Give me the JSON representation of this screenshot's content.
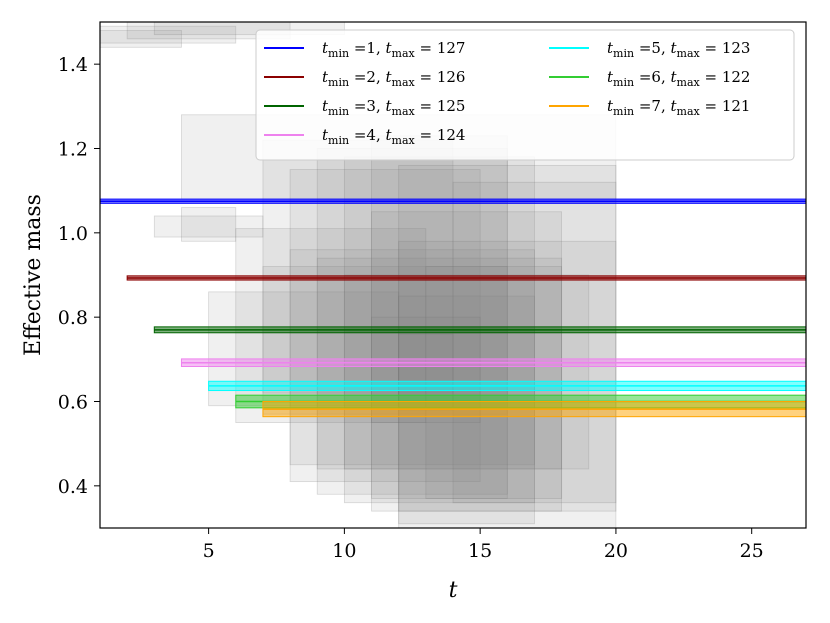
{
  "chart_data": {
    "type": "line",
    "xlabel": "t",
    "ylabel": "Effective mass",
    "xlim": [
      1,
      27
    ],
    "ylim": [
      0.3,
      1.5
    ],
    "xticks": [
      5,
      10,
      15,
      20,
      25
    ],
    "yticks": [
      0.4,
      0.6,
      0.8,
      1.0,
      1.2,
      1.4
    ],
    "legend_position": "top-right",
    "series": [
      {
        "name": "t_min = 1, t_max = 127",
        "legend": {
          "a": "1",
          "b": "127"
        },
        "color": "#0000ff",
        "x_start": 1,
        "center": 1.075,
        "half_width": 0.005
      },
      {
        "name": "t_min = 2, t_max = 126",
        "legend": {
          "a": "2",
          "b": "126"
        },
        "color": "#8b0000",
        "x_start": 2,
        "center": 0.893,
        "half_width": 0.005
      },
      {
        "name": "t_min = 3, t_max = 125",
        "legend": {
          "a": "3",
          "b": "125"
        },
        "color": "#006400",
        "x_start": 3,
        "center": 0.77,
        "half_width": 0.007
      },
      {
        "name": "t_min = 4, t_max = 124",
        "legend": {
          "a": "4",
          "b": "124"
        },
        "color": "#ee82ee",
        "x_start": 4,
        "center": 0.692,
        "half_width": 0.009
      },
      {
        "name": "t_min = 5, t_max = 123",
        "legend": {
          "a": "5",
          "b": "123"
        },
        "color": "#00ffff",
        "x_start": 5,
        "center": 0.637,
        "half_width": 0.011
      },
      {
        "name": "t_min = 6, t_max = 122",
        "legend": {
          "a": "6",
          "b": "122"
        },
        "color": "#32cd32",
        "x_start": 6,
        "center": 0.6,
        "half_width": 0.015
      },
      {
        "name": "t_min = 7, t_max = 121",
        "legend": {
          "a": "7",
          "b": "121"
        },
        "color": "#ffa500",
        "x_start": 7,
        "center": 0.582,
        "half_width": 0.018
      }
    ],
    "background_boxes": [
      {
        "x0": 1,
        "x1": 4,
        "y0": 1.44,
        "y1": 1.48
      },
      {
        "x0": 1,
        "x1": 6,
        "y0": 1.45,
        "y1": 1.49
      },
      {
        "x0": 2,
        "x1": 8,
        "y0": 1.46,
        "y1": 1.5
      },
      {
        "x0": 3,
        "x1": 10,
        "y0": 1.47,
        "y1": 1.5
      },
      {
        "x0": 4,
        "x1": 6,
        "y0": 0.98,
        "y1": 1.06
      },
      {
        "x0": 3,
        "x1": 7,
        "y0": 0.99,
        "y1": 1.04
      },
      {
        "x0": 4,
        "x1": 20,
        "y0": 1.08,
        "y1": 1.28
      },
      {
        "x0": 5,
        "x1": 12,
        "y0": 0.59,
        "y1": 0.86
      },
      {
        "x0": 6,
        "x1": 13,
        "y0": 0.55,
        "y1": 1.01
      },
      {
        "x0": 7,
        "x1": 16,
        "y0": 0.57,
        "y1": 0.92
      },
      {
        "x0": 7,
        "x1": 14,
        "y0": 0.62,
        "y1": 1.22
      },
      {
        "x0": 8,
        "x1": 15,
        "y0": 0.41,
        "y1": 1.15
      },
      {
        "x0": 8,
        "x1": 17,
        "y0": 0.45,
        "y1": 0.96
      },
      {
        "x0": 9,
        "x1": 16,
        "y0": 0.38,
        "y1": 1.2
      },
      {
        "x0": 9,
        "x1": 18,
        "y0": 0.44,
        "y1": 0.94
      },
      {
        "x0": 10,
        "x1": 17,
        "y0": 0.36,
        "y1": 1.18
      },
      {
        "x0": 10,
        "x1": 19,
        "y0": 0.44,
        "y1": 0.9
      },
      {
        "x0": 11,
        "x1": 16,
        "y0": 0.37,
        "y1": 1.23
      },
      {
        "x0": 11,
        "x1": 18,
        "y0": 0.34,
        "y1": 1.05
      },
      {
        "x0": 12,
        "x1": 20,
        "y0": 0.3,
        "y1": 1.16
      },
      {
        "x0": 12,
        "x1": 17,
        "y0": 0.31,
        "y1": 0.85
      },
      {
        "x0": 12,
        "x1": 20,
        "y0": 0.34,
        "y1": 0.98
      },
      {
        "x0": 13,
        "x1": 18,
        "y0": 0.37,
        "y1": 0.92
      },
      {
        "x0": 14,
        "x1": 20,
        "y0": 0.36,
        "y1": 1.12
      },
      {
        "x0": 11,
        "x1": 15,
        "y0": 0.55,
        "y1": 0.8
      },
      {
        "x0": 12,
        "x1": 14,
        "y0": 0.58,
        "y1": 0.76
      }
    ]
  }
}
